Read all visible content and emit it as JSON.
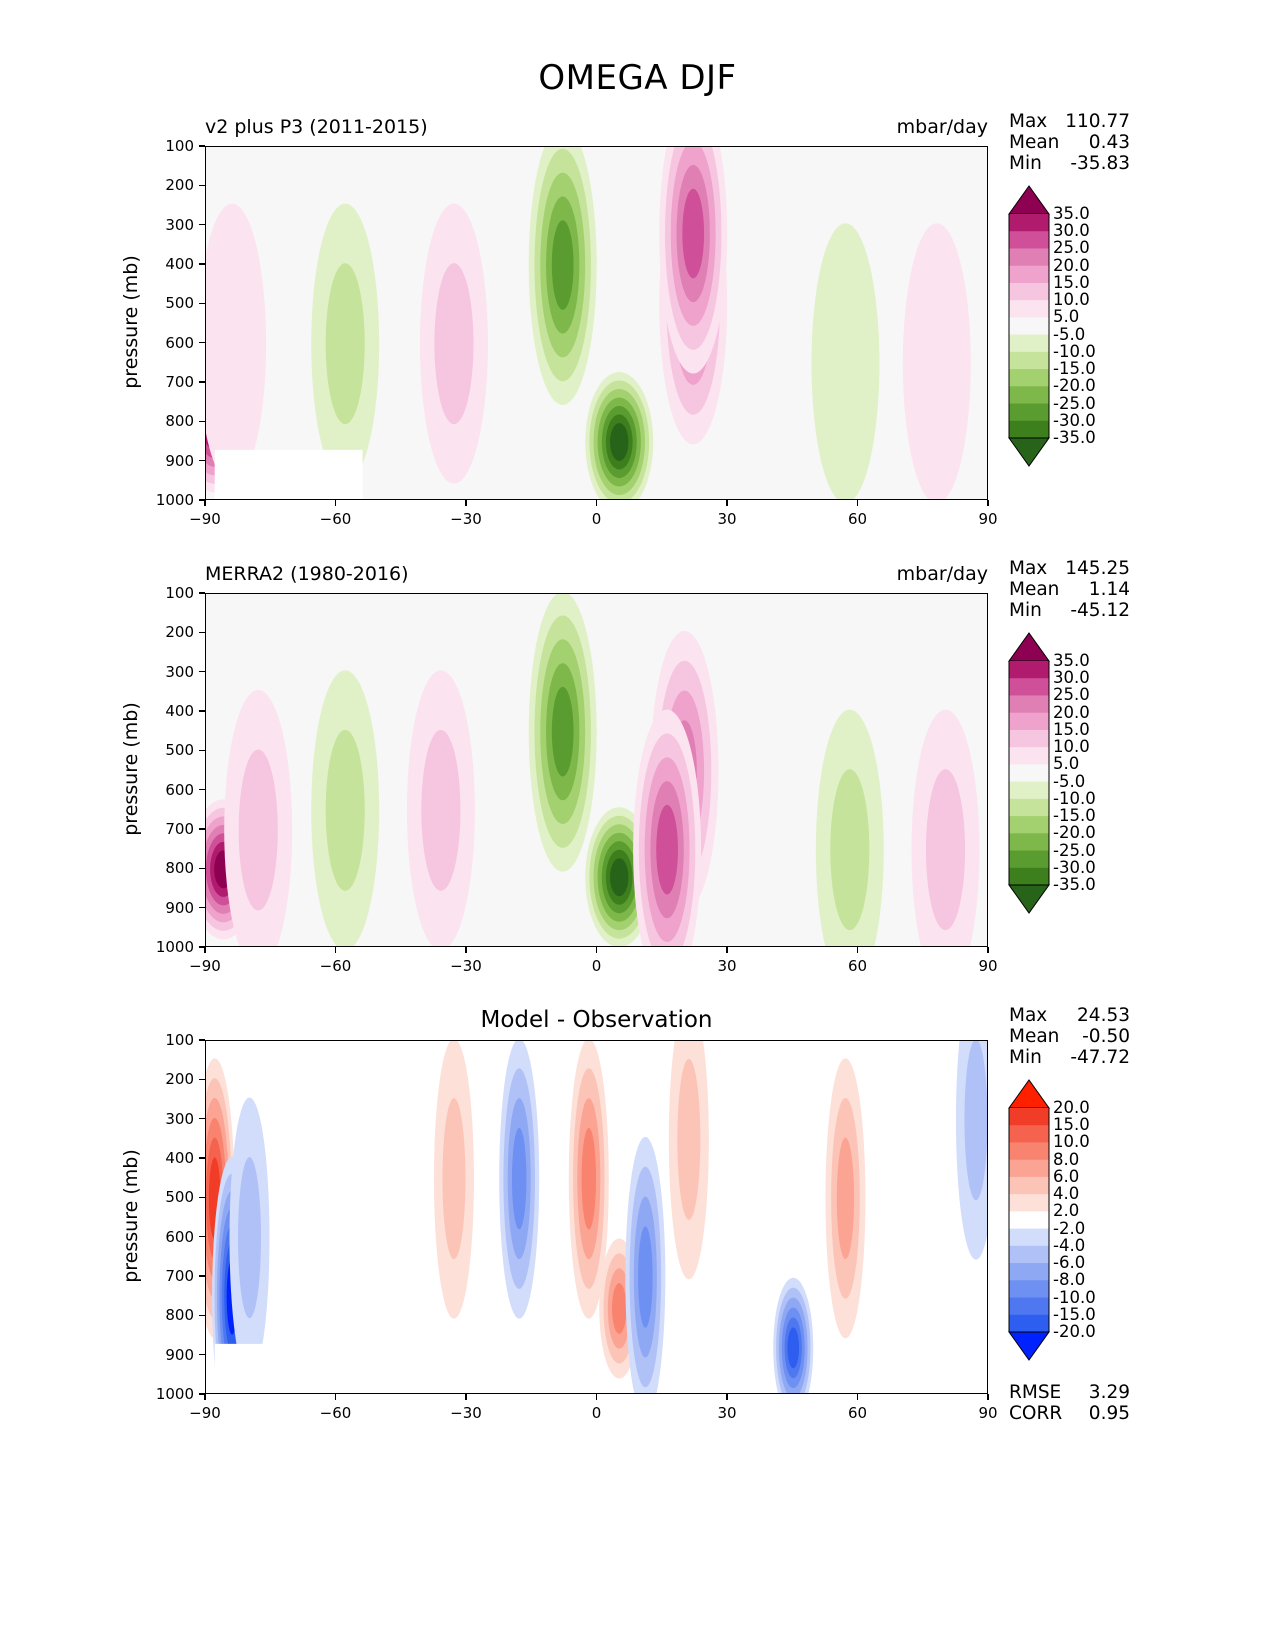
{
  "figure_title": "OMEGA DJF",
  "colors": {
    "background": "#f7f7f7",
    "frame": "#000000",
    "piyg_levels": [
      "#276419",
      "#3d7f1d",
      "#5a9c2f",
      "#7eb84a",
      "#a3d16f",
      "#c5e39a",
      "#e1f1c7",
      "#f7f7f7",
      "#fbe3f0",
      "#f6c5e0",
      "#eea2cc",
      "#e07fb4",
      "#cf4f98",
      "#b01b6e",
      "#8e0152"
    ],
    "bwr_levels": [
      "#0022ff",
      "#2d5ef0",
      "#4f78f0",
      "#6e90f2",
      "#8fa8f4",
      "#afc1f7",
      "#d2dcfb",
      "#ffffff",
      "#fde0d8",
      "#fcc4b6",
      "#fba493",
      "#f88470",
      "#f5634f",
      "#f13d27",
      "#ff2000"
    ]
  },
  "panels": [
    {
      "title": "v2 plus P3 (2011-2015)",
      "units": "mbar/day",
      "ylabel": "pressure (mb)",
      "stats": [
        {
          "label": "Max",
          "value": "110.77"
        },
        {
          "label": "Mean",
          "value": "0.43"
        },
        {
          "label": "Min",
          "value": "-35.83"
        }
      ],
      "colorbar_labels": [
        "35.0",
        "30.0",
        "25.0",
        "20.0",
        "15.0",
        "10.0",
        "5.0",
        "-5.0",
        "-10.0",
        "-15.0",
        "-20.0",
        "-25.0",
        "-30.0",
        "-35.0"
      ]
    },
    {
      "title": "MERRA2 (1980-2016)",
      "units": "mbar/day",
      "ylabel": "pressure (mb)",
      "stats": [
        {
          "label": "Max",
          "value": "145.25"
        },
        {
          "label": "Mean",
          "value": "1.14"
        },
        {
          "label": "Min",
          "value": "-45.12"
        }
      ],
      "colorbar_labels": [
        "35.0",
        "30.0",
        "25.0",
        "20.0",
        "15.0",
        "10.0",
        "5.0",
        "-5.0",
        "-10.0",
        "-15.0",
        "-20.0",
        "-25.0",
        "-30.0",
        "-35.0"
      ]
    },
    {
      "title": "Model - Observation",
      "units": "",
      "ylabel": "pressure (mb)",
      "stats": [
        {
          "label": "Max",
          "value": "24.53"
        },
        {
          "label": "Mean",
          "value": "-0.50"
        },
        {
          "label": "Min",
          "value": "-47.72"
        }
      ],
      "colorbar_labels": [
        "20.0",
        "15.0",
        "10.0",
        "8.0",
        "6.0",
        "4.0",
        "2.0",
        "-2.0",
        "-4.0",
        "-6.0",
        "-8.0",
        "-10.0",
        "-15.0",
        "-20.0"
      ],
      "metrics": [
        {
          "label": "RMSE",
          "value": "3.29"
        },
        {
          "label": "CORR",
          "value": "0.95"
        }
      ]
    }
  ],
  "chart_data": [
    {
      "type": "heatmap",
      "title": "v2 plus P3 (2011-2015)",
      "xlabel": "",
      "ylabel": "pressure (mb)",
      "xlim": [
        -90,
        90
      ],
      "ylim": [
        1000,
        100
      ],
      "x_ticks": [
        -90,
        -60,
        -30,
        0,
        30,
        60,
        90
      ],
      "x_tick_labels": [
        "−90",
        "−60",
        "−30",
        "0",
        "30",
        "60",
        "90"
      ],
      "y_ticks": [
        100,
        200,
        300,
        400,
        500,
        600,
        700,
        800,
        900,
        1000
      ],
      "y_tick_labels": [
        "100",
        "200",
        "300",
        "400",
        "500",
        "600",
        "700",
        "800",
        "900",
        "1000"
      ],
      "levels": [
        -35,
        -30,
        -25,
        -20,
        -15,
        -10,
        -5,
        5,
        10,
        15,
        20,
        25,
        30,
        35
      ],
      "features": [
        {
          "kind": "rise",
          "lat": -88,
          "p": 800,
          "value": 40
        },
        {
          "kind": "rise",
          "lat": -84,
          "p": 600,
          "value": 6
        },
        {
          "kind": "sink",
          "lat": -58,
          "p": 600,
          "value": -10
        },
        {
          "kind": "rise",
          "lat": -33,
          "p": 600,
          "value": 12
        },
        {
          "kind": "sink",
          "lat": -8,
          "p": 400,
          "value": -25
        },
        {
          "kind": "sink",
          "lat": 5,
          "p": 850,
          "value": -35
        },
        {
          "kind": "rise",
          "lat": 22,
          "p": 500,
          "value": 22
        },
        {
          "kind": "rise",
          "lat": 22,
          "p": 320,
          "value": 28
        },
        {
          "kind": "sink",
          "lat": 57,
          "p": 650,
          "value": -6
        },
        {
          "kind": "rise",
          "lat": 78,
          "p": 650,
          "value": 6
        }
      ],
      "masked_region": {
        "lat": [
          -88,
          -54
        ],
        "p": [
          870,
          1000
        ]
      }
    },
    {
      "type": "heatmap",
      "title": "MERRA2 (1980-2016)",
      "xlabel": "",
      "ylabel": "pressure (mb)",
      "xlim": [
        -90,
        90
      ],
      "ylim": [
        1000,
        100
      ],
      "x_ticks": [
        -90,
        -60,
        -30,
        0,
        30,
        60,
        90
      ],
      "x_tick_labels": [
        "−90",
        "−60",
        "−30",
        "0",
        "30",
        "60",
        "90"
      ],
      "y_ticks": [
        100,
        200,
        300,
        400,
        500,
        600,
        700,
        800,
        900,
        1000
      ],
      "y_tick_labels": [
        "100",
        "200",
        "300",
        "400",
        "500",
        "600",
        "700",
        "800",
        "900",
        "1000"
      ],
      "levels": [
        -35,
        -30,
        -25,
        -20,
        -15,
        -10,
        -5,
        5,
        10,
        15,
        20,
        25,
        30,
        35
      ],
      "features": [
        {
          "kind": "rise",
          "lat": -86,
          "p": 800,
          "value": 40
        },
        {
          "kind": "rise",
          "lat": -78,
          "p": 700,
          "value": 12
        },
        {
          "kind": "sink",
          "lat": -58,
          "p": 650,
          "value": -10
        },
        {
          "kind": "rise",
          "lat": -36,
          "p": 650,
          "value": 10
        },
        {
          "kind": "sink",
          "lat": -8,
          "p": 450,
          "value": -25
        },
        {
          "kind": "sink",
          "lat": 5,
          "p": 820,
          "value": -35
        },
        {
          "kind": "rise",
          "lat": 20,
          "p": 550,
          "value": 22
        },
        {
          "kind": "rise",
          "lat": 16,
          "p": 750,
          "value": 28
        },
        {
          "kind": "sink",
          "lat": 58,
          "p": 750,
          "value": -12
        },
        {
          "kind": "rise",
          "lat": 80,
          "p": 750,
          "value": 10
        }
      ]
    },
    {
      "type": "heatmap",
      "title": "Model - Observation",
      "xlabel": "",
      "ylabel": "pressure (mb)",
      "xlim": [
        -90,
        90
      ],
      "ylim": [
        1000,
        100
      ],
      "x_ticks": [
        -90,
        -60,
        -30,
        0,
        30,
        60,
        90
      ],
      "x_tick_labels": [
        "−90",
        "−60",
        "−30",
        "0",
        "30",
        "60",
        "90"
      ],
      "y_ticks": [
        100,
        200,
        300,
        400,
        500,
        600,
        700,
        800,
        900,
        1000
      ],
      "y_tick_labels": [
        "100",
        "200",
        "300",
        "400",
        "500",
        "600",
        "700",
        "800",
        "900",
        "1000"
      ],
      "levels": [
        -20,
        -15,
        -10,
        -8,
        -6,
        -4,
        -2,
        2,
        4,
        6,
        8,
        10,
        15,
        20
      ],
      "features": [
        {
          "kind": "positive",
          "lat": -88,
          "p": 500,
          "value": 15
        },
        {
          "kind": "negative",
          "lat": -84,
          "p": 750,
          "value": -20
        },
        {
          "kind": "negative",
          "lat": -80,
          "p": 600,
          "value": -5
        },
        {
          "kind": "positive",
          "lat": -33,
          "p": 450,
          "value": 4
        },
        {
          "kind": "negative",
          "lat": -18,
          "p": 450,
          "value": -8
        },
        {
          "kind": "positive",
          "lat": -2,
          "p": 450,
          "value": 8
        },
        {
          "kind": "positive",
          "lat": 5,
          "p": 780,
          "value": 8
        },
        {
          "kind": "negative",
          "lat": 11,
          "p": 700,
          "value": -8
        },
        {
          "kind": "positive",
          "lat": 21,
          "p": 350,
          "value": 4
        },
        {
          "kind": "negative",
          "lat": 45,
          "p": 880,
          "value": -15
        },
        {
          "kind": "positive",
          "lat": 57,
          "p": 500,
          "value": 6
        },
        {
          "kind": "negative",
          "lat": 87,
          "p": 300,
          "value": -4
        }
      ],
      "masked_region": {
        "lat": [
          -88,
          -54
        ],
        "p": [
          870,
          1000
        ]
      }
    }
  ]
}
